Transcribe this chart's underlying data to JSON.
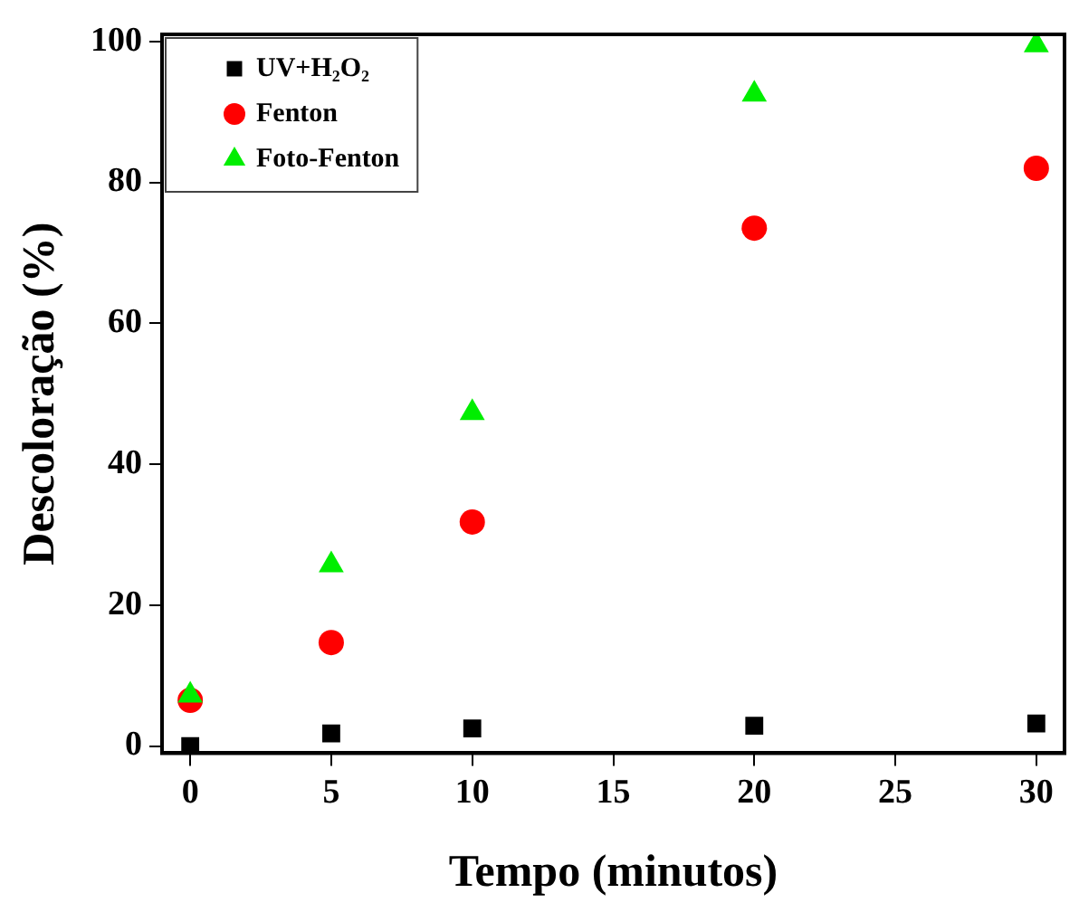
{
  "chart_data": {
    "type": "scatter",
    "xlabel": "Tempo (minutos)",
    "ylabel": "Descoloração (%)",
    "xlim": [
      -1,
      31
    ],
    "xticks": [
      0,
      5,
      10,
      15,
      20,
      25,
      30
    ],
    "ylim": [
      -1,
      101
    ],
    "yticks": [
      0,
      20,
      40,
      60,
      80,
      100
    ],
    "grid": false,
    "legend": "top left",
    "x": [
      0,
      5,
      10,
      20,
      30
    ],
    "series": [
      {
        "name": "UV+H₂O₂",
        "color": "#000000",
        "marker": "square",
        "values": [
          0,
          1.8,
          2.5,
          2.9,
          3.2
        ]
      },
      {
        "name": "Fenton",
        "color": "#ff0000",
        "marker": "circle",
        "values": [
          6.5,
          14.7,
          31.8,
          73.5,
          82
        ]
      },
      {
        "name": "Foto-Fenton",
        "color": "#00ee00",
        "marker": "triangle",
        "values": [
          7.2,
          25.7,
          47.3,
          92.5,
          99.5
        ]
      }
    ]
  }
}
